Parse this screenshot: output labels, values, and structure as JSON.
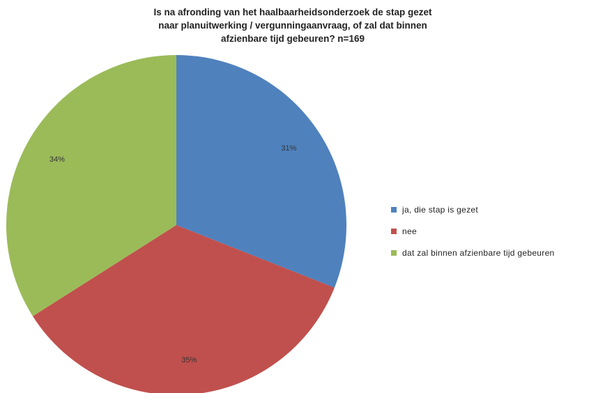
{
  "chart_data": {
    "type": "pie",
    "title_lines": [
      "Is na afronding van het haalbaarheidsonderzoek de stap gezet",
      "naar planuitwerking / vergunningaanvraag, of zal dat binnen",
      "afzienbare tijd gebeuren? n=169"
    ],
    "categories": [
      "ja, die stap is gezet",
      "nee",
      "dat zal binnen afzienbare tijd gebeuren"
    ],
    "values": [
      31,
      35,
      34
    ],
    "labels": [
      "31%",
      "35%",
      "34%"
    ],
    "colors": [
      "#4f81bd",
      "#c0504d",
      "#9bbb59"
    ],
    "legend_position": "right"
  }
}
